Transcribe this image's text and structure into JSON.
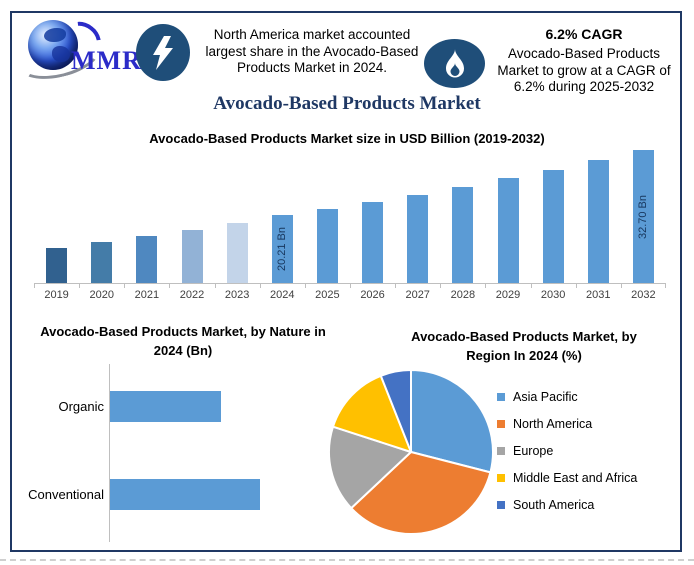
{
  "page": {
    "background": "#ffffff",
    "frame_color": "#1f3864"
  },
  "header": {
    "logo": {
      "text": "MMR"
    },
    "north_america_note": "North America market accounted largest share in the Avocado-Based Products Market in 2024.",
    "cagr": {
      "headline": "6.2% CAGR",
      "note": "Avocado-Based Products Market to grow at a CAGR of 6.2% during 2025-2032"
    }
  },
  "main_title": "Avocado-Based Products Market",
  "chart_data": [
    {
      "type": "bar",
      "title": "Avocado-Based Products Market size in USD Billion (2019-2032)",
      "categories": [
        "2019",
        "2020",
        "2021",
        "2022",
        "2023",
        "2024",
        "2025",
        "2026",
        "2027",
        "2028",
        "2029",
        "2030",
        "2031",
        "2032"
      ],
      "values": [
        14.0,
        15.0,
        16.3,
        17.4,
        18.7,
        20.21,
        21.5,
        22.8,
        24.2,
        25.7,
        27.3,
        29.0,
        30.8,
        32.7
      ],
      "unit": "USD Bn",
      "bar_labels": {
        "2024": "20.21 Bn",
        "2032": "32.70 Bn"
      },
      "bar_colors": {
        "2019": "#31618f",
        "2020": "#447ca8",
        "2021": "#4f88c0",
        "2022": "#92b2d6",
        "2023": "#c3d4e9",
        "default": "#5b9bd5"
      },
      "axis_color": "#bfbfbf",
      "legend_position": "none",
      "grid": false
    },
    {
      "type": "bar",
      "orientation": "horizontal",
      "title": "Avocado-Based Products Market, by Nature in 2024 (Bn)",
      "categories": [
        "Organic",
        "Conventional"
      ],
      "values": [
        8.6,
        11.6
      ],
      "unit": "USD Bn",
      "bar_color": "#5b9bd5",
      "axis_color": "#bfbfbf",
      "grid": false
    },
    {
      "type": "pie",
      "title": "Avocado-Based Products Market, by Region In 2024 (%)",
      "categories": [
        "Asia Pacific",
        "North America",
        "Europe",
        "Middle East and Africa",
        "South America"
      ],
      "values": [
        29,
        34,
        17,
        14,
        6
      ],
      "colors": [
        "#5b9bd5",
        "#ed7d31",
        "#a5a5a5",
        "#ffc000",
        "#4472c4"
      ],
      "legend_position": "right",
      "start_angle_deg": 0,
      "direction": "clockwise"
    }
  ]
}
